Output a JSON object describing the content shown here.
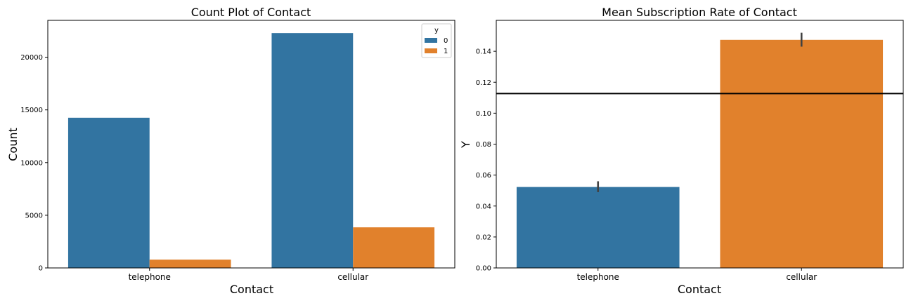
{
  "chart_data": [
    {
      "type": "bar",
      "title": "Count Plot of Contact",
      "xlabel": "Contact",
      "ylabel": "Count",
      "categories": [
        "telephone",
        "cellular"
      ],
      "ylim": [
        0,
        23500
      ],
      "yticks": [
        0,
        5000,
        10000,
        15000,
        20000
      ],
      "series": [
        {
          "name": "0",
          "values": [
            14257,
            22291
          ],
          "color": "#3274a1"
        },
        {
          "name": "1",
          "values": [
            787,
            3853
          ],
          "color": "#e1812c"
        }
      ],
      "legend": {
        "title": "y",
        "placement": "top-right"
      }
    },
    {
      "type": "bar",
      "title": "Mean Subscription Rate of Contact",
      "xlabel": "Contact",
      "ylabel": "Y",
      "categories": [
        "telephone",
        "cellular"
      ],
      "values": [
        0.0523,
        0.1474
      ],
      "error_bars": [
        [
          0.049,
          0.056
        ],
        [
          0.143,
          0.152
        ]
      ],
      "colors": [
        "#3274a1",
        "#e1812c"
      ],
      "ylim": [
        0,
        0.16
      ],
      "yticks": [
        0.0,
        0.02,
        0.04,
        0.06,
        0.08,
        0.1,
        0.12,
        0.14
      ],
      "ytick_labels": [
        "0.00",
        "0.02",
        "0.04",
        "0.06",
        "0.08",
        "0.10",
        "0.12",
        "0.14"
      ],
      "hline": 0.1127
    }
  ]
}
